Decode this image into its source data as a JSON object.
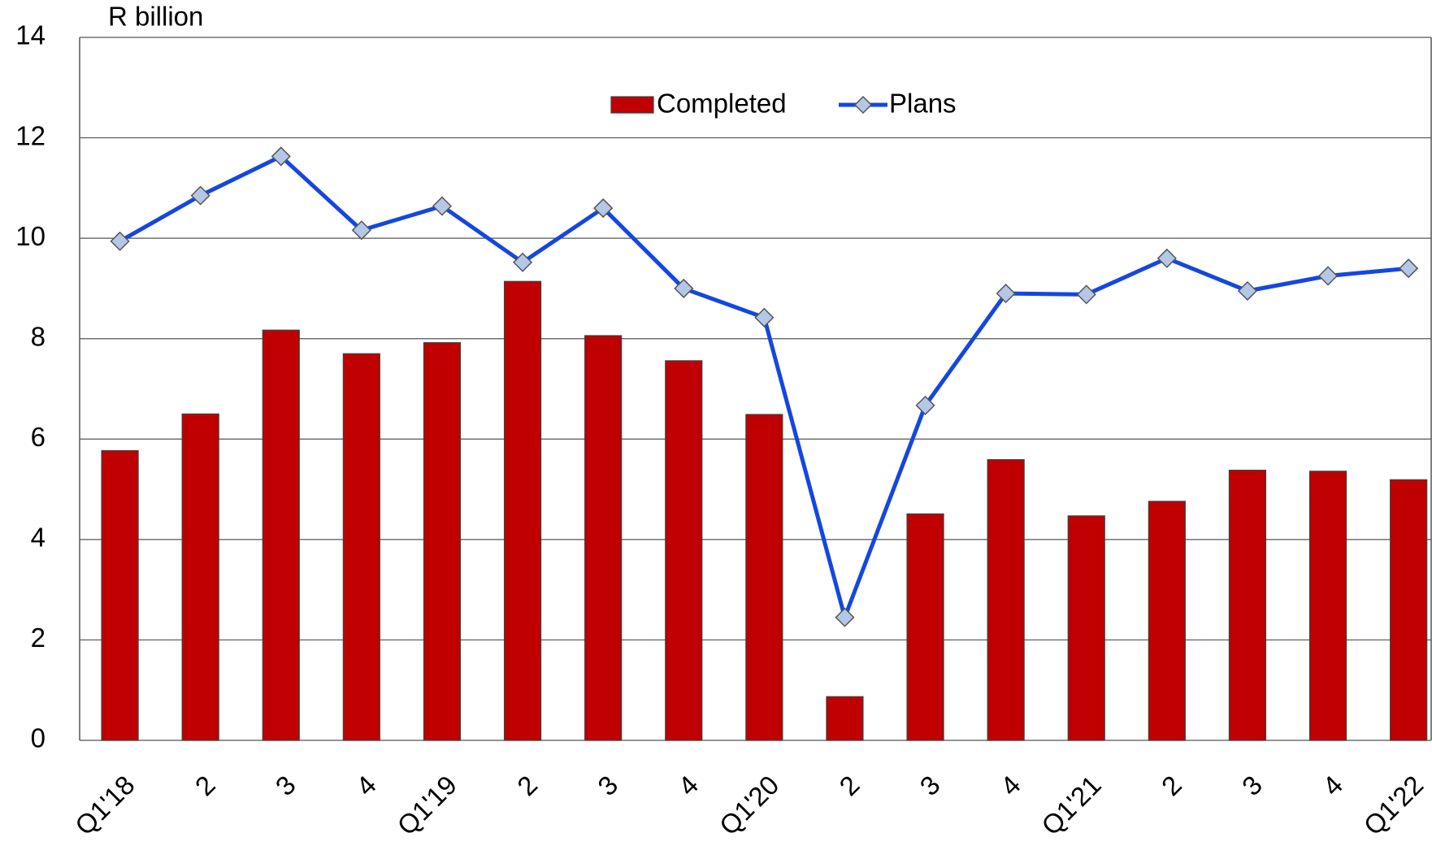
{
  "chart_data": {
    "type": "bar",
    "y_label": "R billion",
    "categories": [
      "Q1'18",
      "2",
      "3",
      "4",
      "Q1'19",
      "2",
      "3",
      "4",
      "Q1'20",
      "2",
      "3",
      "4",
      "Q1'21",
      "2",
      "3",
      "4",
      "Q1'22"
    ],
    "series": [
      {
        "name": "Completed",
        "type": "bar",
        "color": "#c00000",
        "values": [
          5.77,
          6.5,
          8.17,
          7.7,
          7.92,
          9.14,
          8.06,
          7.56,
          6.49,
          0.87,
          4.51,
          5.59,
          4.47,
          4.76,
          5.38,
          5.36,
          5.19
        ]
      },
      {
        "name": "Plans",
        "type": "line",
        "color": "#1447e0",
        "marker_color": "#b4c7e7",
        "values": [
          9.94,
          10.85,
          11.63,
          10.16,
          10.64,
          9.52,
          10.6,
          9.0,
          8.42,
          2.45,
          6.67,
          8.9,
          8.88,
          9.6,
          8.95,
          9.25,
          9.4
        ]
      }
    ],
    "ylim": [
      0,
      14
    ],
    "yticks": [
      0,
      2,
      4,
      6,
      8,
      10,
      12,
      14
    ],
    "grid": true,
    "legend": "top"
  }
}
